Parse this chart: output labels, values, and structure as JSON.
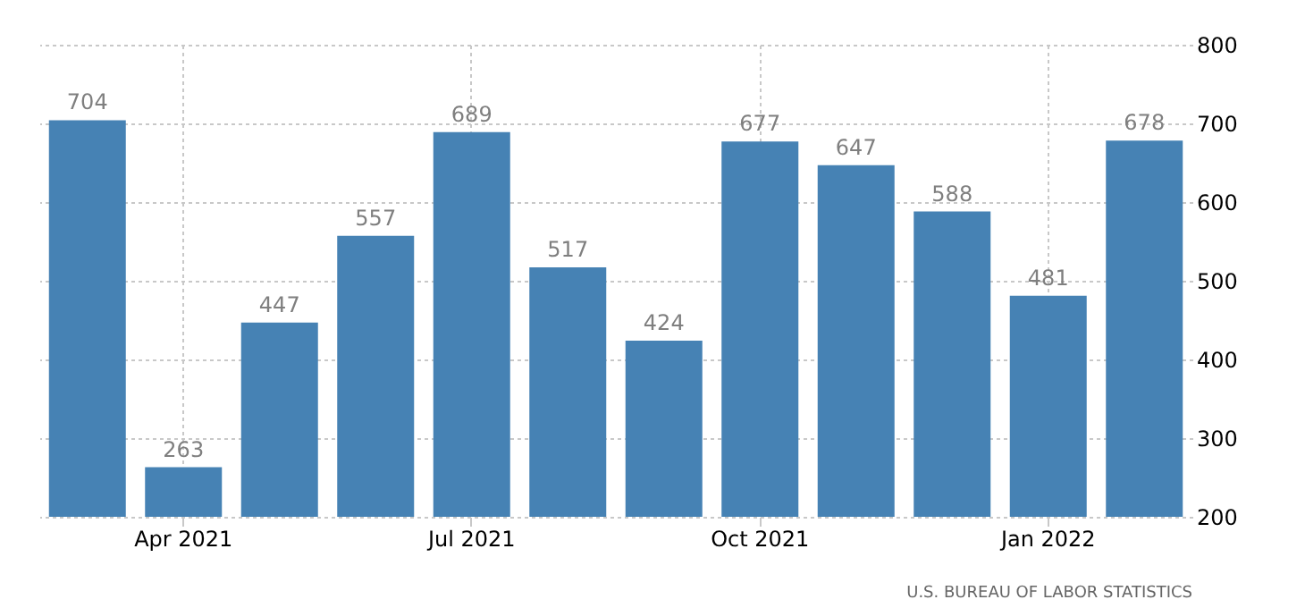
{
  "chart_data": {
    "type": "bar",
    "categories": [
      null,
      "Apr 2021",
      null,
      null,
      "Jul 2021",
      null,
      null,
      "Oct 2021",
      null,
      null,
      "Jan 2022",
      null
    ],
    "values": [
      704,
      263,
      447,
      557,
      689,
      517,
      424,
      677,
      647,
      588,
      481,
      678
    ],
    "color": "#4682b4",
    "ylim": [
      200,
      800
    ],
    "yticks": [
      200,
      300,
      400,
      500,
      600,
      700,
      800
    ],
    "grid": true,
    "data_labels": true,
    "annotations": [
      "U.S. BUREAU OF LABOR STATISTICS"
    ]
  }
}
